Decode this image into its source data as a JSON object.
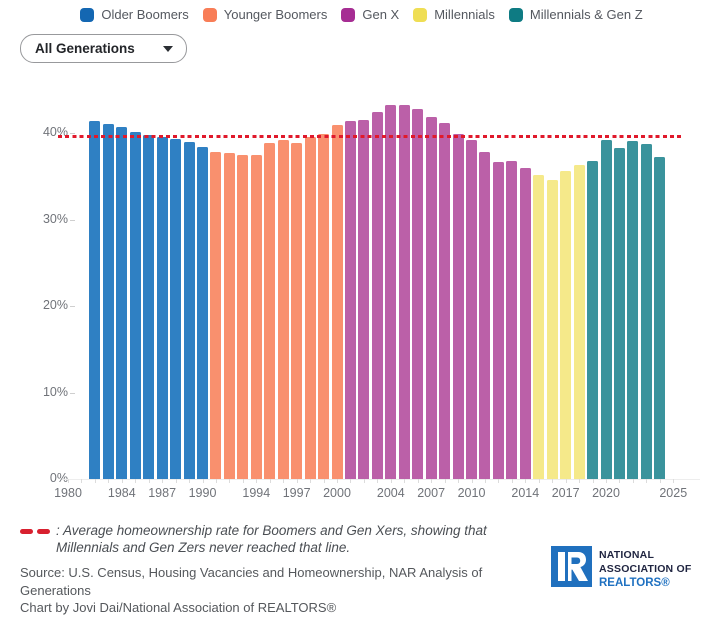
{
  "legend": {
    "items": [
      {
        "label": "Older Boomers",
        "color": "#1467B2"
      },
      {
        "label": "Younger Boomers",
        "color": "#F87D57"
      },
      {
        "label": "Gen X",
        "color": "#A62D93"
      },
      {
        "label": "Millennials",
        "color": "#EFDE54"
      },
      {
        "label": "Millennials & Gen Z",
        "color": "#0E7B83"
      }
    ]
  },
  "controls": {
    "generation_filter": {
      "value": "All Generations"
    }
  },
  "chart_data": {
    "type": "bar",
    "title": "",
    "xlabel": "",
    "ylabel": "",
    "ylim": [
      0,
      46
    ],
    "x_range": [
      1980,
      2025
    ],
    "grid": false,
    "y_axis": {
      "ticks": [
        {
          "value": 0,
          "label": "0%"
        },
        {
          "value": 10,
          "label": "10%"
        },
        {
          "value": 20,
          "label": "20%"
        },
        {
          "value": 30,
          "label": "30%"
        },
        {
          "value": 40,
          "label": "40%"
        }
      ]
    },
    "x_axis": {
      "tick_years": [
        1980,
        1984,
        1987,
        1990,
        1994,
        1997,
        2000,
        2004,
        2007,
        2010,
        2014,
        2017,
        2020,
        2025
      ]
    },
    "reference_line": {
      "value": 39.7,
      "style": "dotted",
      "color": "#E0192B",
      "meaning": "Average homeownership rate for Boomers and Gen Xers"
    },
    "series": [
      {
        "name": "Older Boomers",
        "bar_color": "#2F80C3",
        "legend_color": "#1467B2",
        "years": [
          1982,
          1983,
          1984,
          1985,
          1986,
          1987,
          1988,
          1989,
          1990
        ],
        "values": [
          41.4,
          41.0,
          40.7,
          40.1,
          39.8,
          39.5,
          39.3,
          39.0,
          38.4
        ]
      },
      {
        "name": "Younger Boomers",
        "bar_color": "#F9906E",
        "legend_color": "#F87D57",
        "years": [
          1991,
          1992,
          1993,
          1994,
          1995,
          1996,
          1997,
          1998,
          1999,
          2000
        ],
        "values": [
          37.8,
          37.7,
          37.4,
          37.4,
          38.8,
          39.2,
          38.8,
          39.5,
          39.9,
          40.9
        ]
      },
      {
        "name": "Gen X",
        "bar_color": "#BB60A8",
        "legend_color": "#A62D93",
        "years": [
          2001,
          2002,
          2003,
          2004,
          2005,
          2006,
          2007,
          2008,
          2009,
          2010,
          2011,
          2012,
          2013,
          2014
        ],
        "values": [
          41.4,
          41.5,
          42.4,
          43.2,
          43.2,
          42.8,
          41.8,
          41.1,
          39.9,
          39.2,
          37.8,
          36.6,
          36.8,
          35.9
        ]
      },
      {
        "name": "Millennials",
        "bar_color": "#F5E98A",
        "legend_color": "#EFDE54",
        "years": [
          2015,
          2016,
          2017,
          2018
        ],
        "values": [
          35.1,
          34.6,
          35.6,
          36.3
        ]
      },
      {
        "name": "Millennials & Gen Z",
        "bar_color": "#3A939C",
        "legend_color": "#0E7B83",
        "years": [
          2019,
          2020,
          2021,
          2022,
          2023,
          2024
        ],
        "values": [
          36.8,
          39.2,
          38.3,
          39.1,
          38.7,
          37.2
        ]
      }
    ]
  },
  "caption": {
    "text": ": Average homeownership rate for Boomers and Gen Xers, showing that Millennials and Gen Zers never reached that line."
  },
  "source": {
    "line1": "Source: U.S. Census, Housing Vacancies and Homeownership, NAR Analysis of Generations",
    "line2": "Chart by Jovi Dai/National Association of REALTORS®"
  },
  "logo": {
    "line1": "NATIONAL",
    "line2": "ASSOCIATION OF",
    "line3": "REALTORS®"
  }
}
